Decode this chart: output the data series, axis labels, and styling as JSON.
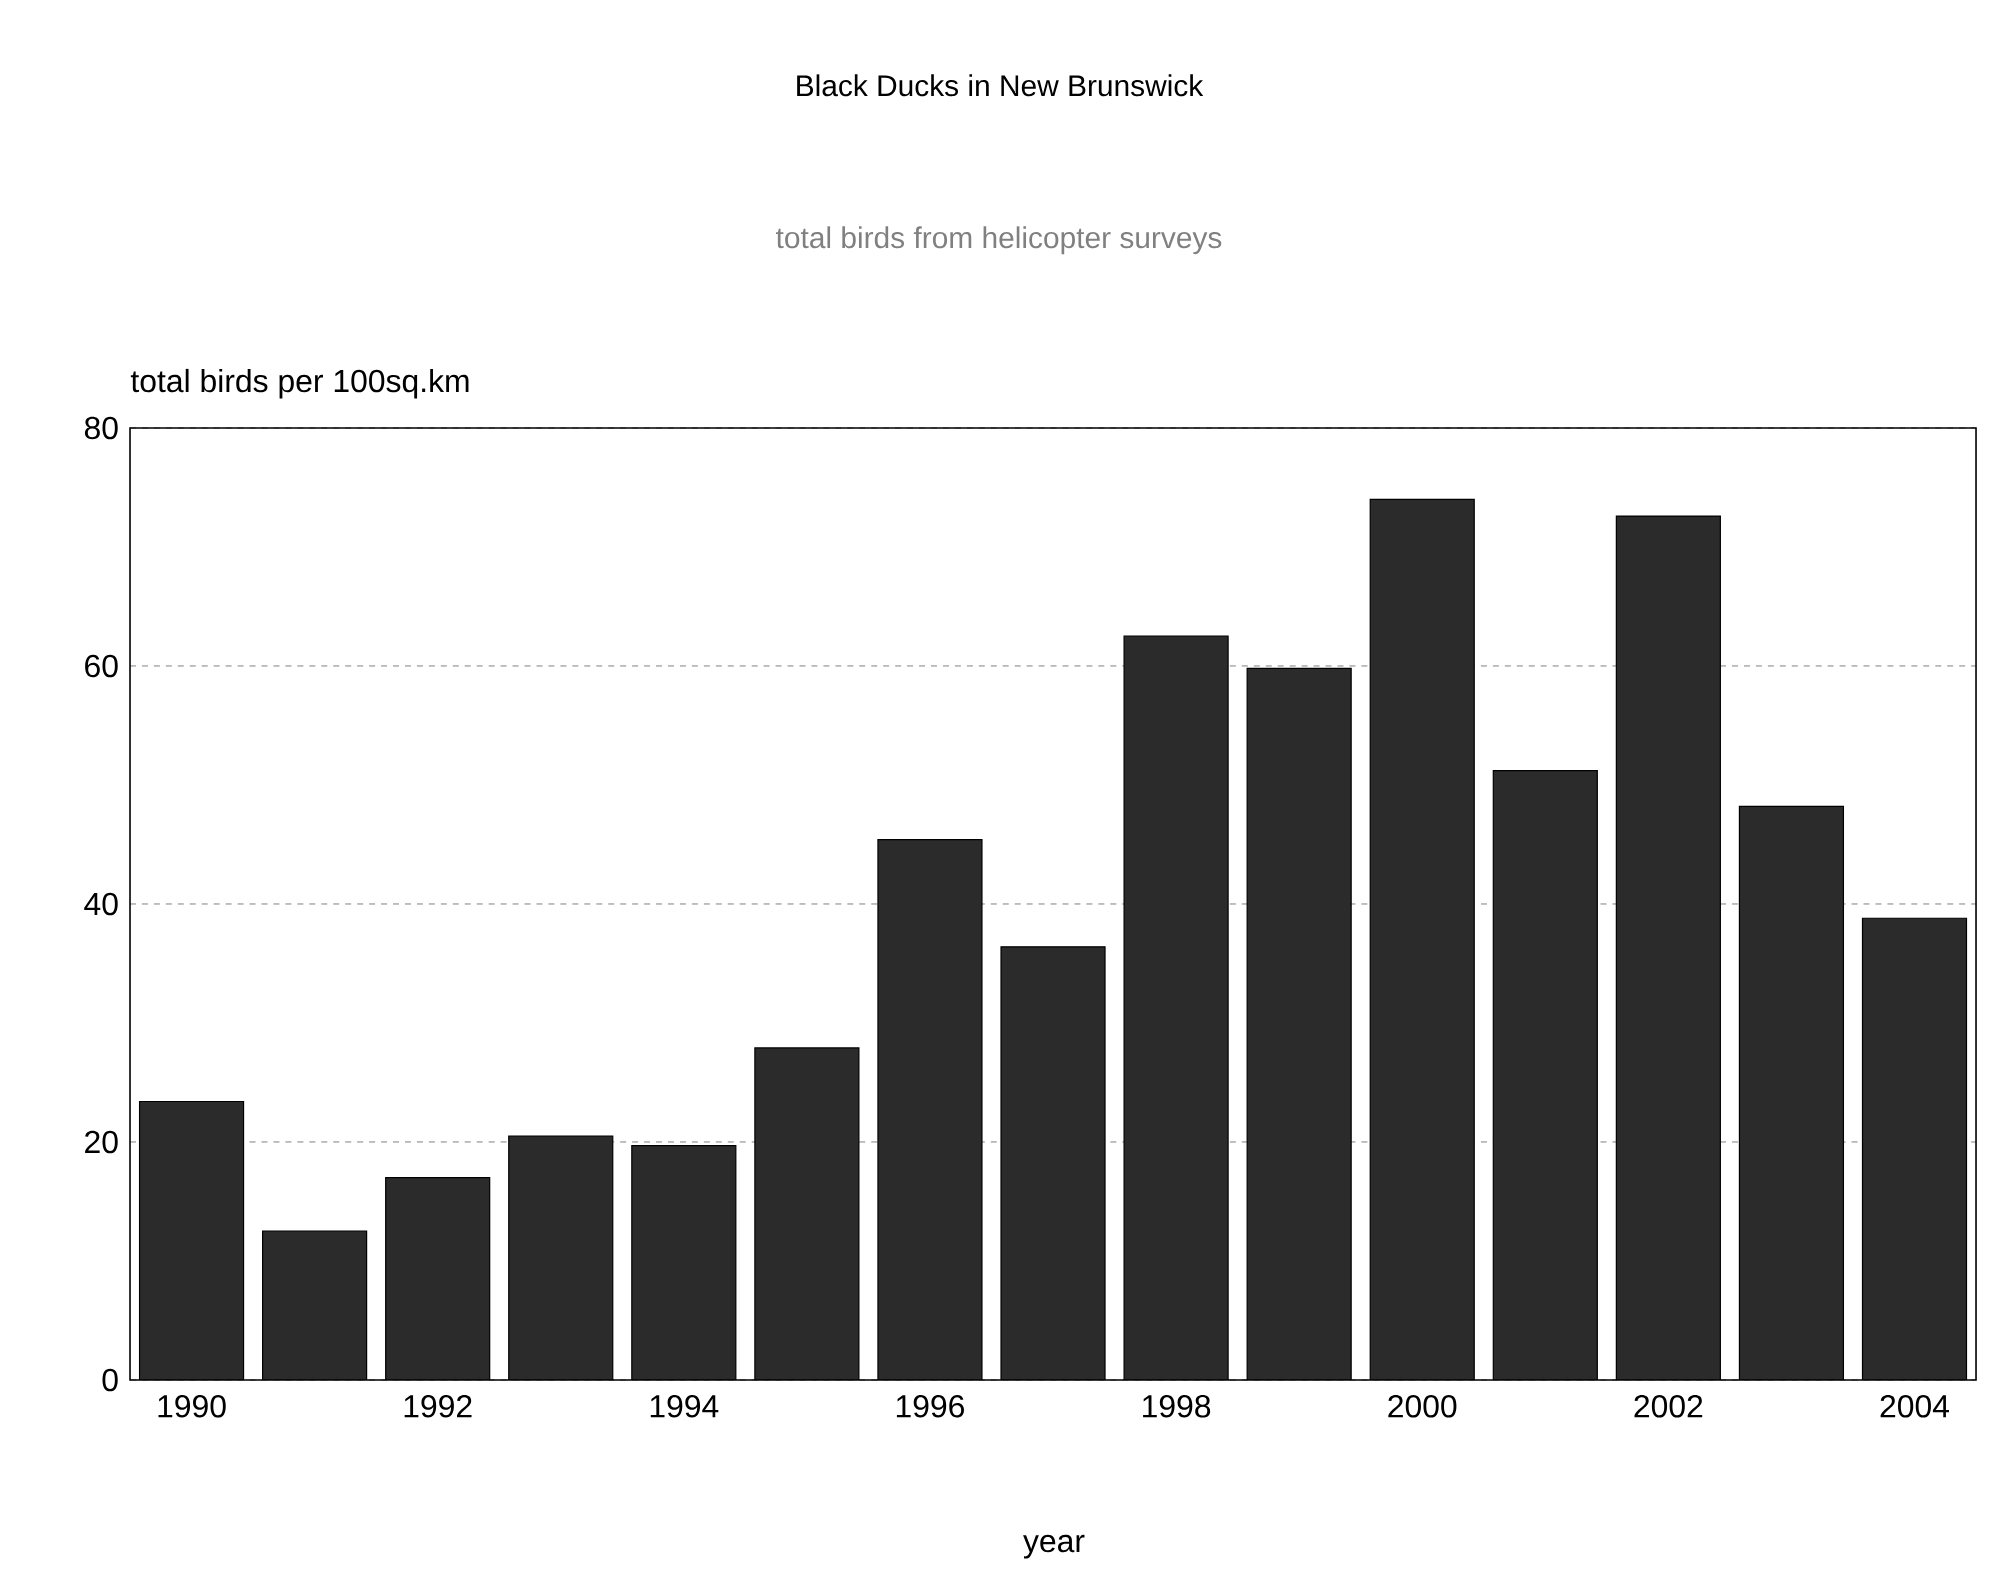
{
  "chart_data": {
    "type": "bar",
    "title": "Black Ducks in New Brunswick",
    "subtitle": "total birds from helicopter surveys",
    "ylabel": "total birds per 100sq.km",
    "xlabel": "year",
    "categories": [
      "1990",
      null,
      "1992",
      null,
      "1994",
      null,
      "1996",
      null,
      "1998",
      null,
      "2000",
      null,
      "2002",
      null,
      "2004"
    ],
    "values": [
      23.4,
      12.5,
      17.0,
      20.5,
      19.7,
      27.9,
      45.4,
      36.4,
      62.5,
      59.8,
      74.0,
      51.2,
      72.6,
      48.2,
      38.8
    ],
    "color": "#2b2b2b",
    "ylim": [
      0,
      80
    ],
    "yticks": [
      0,
      20,
      40,
      60,
      80
    ],
    "grid": "y"
  }
}
